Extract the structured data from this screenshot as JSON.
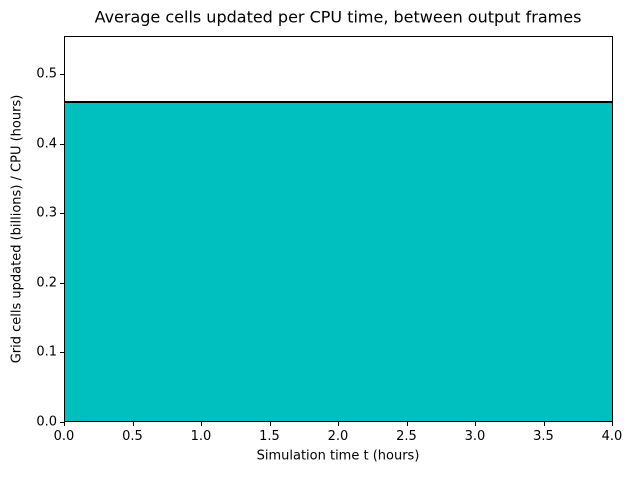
{
  "chart_data": {
    "type": "area",
    "title": "Average cells updated per CPU time, between output frames",
    "xlabel": "Simulation time t (hours)",
    "ylabel": "Grid cells updated (billions) / CPU (hours)",
    "x": [
      0.0,
      4.0
    ],
    "values": [
      0.46,
      0.46
    ],
    "xlim": [
      0.0,
      4.0
    ],
    "ylim": [
      0.0,
      0.555
    ],
    "xticks": [
      "0.0",
      "0.5",
      "1.0",
      "1.5",
      "2.0",
      "2.5",
      "3.0",
      "3.5",
      "4.0"
    ],
    "yticks": [
      "0.0",
      "0.1",
      "0.2",
      "0.3",
      "0.4",
      "0.5"
    ],
    "grid": false,
    "legend": false,
    "fill_color": "#00bfbf",
    "line_color": "#000000",
    "frame_color": "#000000"
  }
}
